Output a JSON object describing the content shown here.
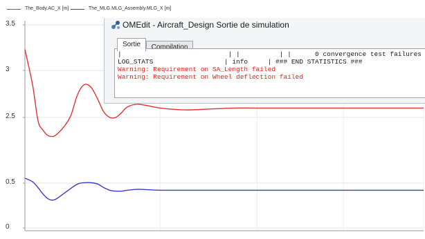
{
  "legend": {
    "items": [
      {
        "label": "The_Body.AC_X [m]",
        "color": "#e83030"
      },
      {
        "label": "The_MLG.MLG_Assembly.MLG_X [m]",
        "color": "#3a3ad0"
      }
    ]
  },
  "chart_data": {
    "type": "line",
    "title": "",
    "xlabel": "",
    "ylabel": "",
    "ylim": [
      0,
      3.5
    ],
    "y_tick_labels": [
      "3.5",
      "3",
      "2.5",
      "0.5",
      "0"
    ],
    "grid": true,
    "legend_placement": "top-left",
    "series": [
      {
        "name": "The_Body.AC_X [m]",
        "color": "#e83030",
        "x": [
          0.0,
          0.05,
          0.1,
          0.15,
          0.2,
          0.25,
          0.3,
          0.4,
          0.5,
          0.6,
          0.7,
          0.8,
          0.9,
          1.0,
          1.1,
          1.2,
          1.3,
          1.4,
          1.6,
          2.0,
          2.5,
          3.0,
          3.5,
          4.0,
          5.0,
          6.0,
          7.0,
          8.0
        ],
        "y": [
          3.23,
          2.85,
          2.4,
          2.12,
          1.96,
          1.92,
          1.96,
          2.2,
          2.52,
          2.75,
          2.85,
          2.82,
          2.7,
          2.56,
          2.5,
          2.5,
          2.55,
          2.61,
          2.64,
          2.6,
          2.58,
          2.59,
          2.6,
          2.6,
          2.6,
          2.6,
          2.6,
          2.6
        ]
      },
      {
        "name": "The_MLG.MLG_Assembly.MLG_X [m]",
        "color": "#3a3ad0",
        "x": [
          0.0,
          0.05,
          0.1,
          0.15,
          0.2,
          0.25,
          0.3,
          0.4,
          0.5,
          0.6,
          0.7,
          0.8,
          0.9,
          1.0,
          1.1,
          1.2,
          1.3,
          1.4,
          1.6,
          2.0,
          2.5,
          3.0,
          3.5,
          4.0,
          5.0,
          6.0,
          7.0,
          8.0
        ],
        "y": [
          0.65,
          0.54,
          0.45,
          0.38,
          0.33,
          0.31,
          0.32,
          0.38,
          0.44,
          0.49,
          0.51,
          0.51,
          0.49,
          0.45,
          0.42,
          0.41,
          0.41,
          0.42,
          0.43,
          0.42,
          0.42,
          0.42,
          0.42,
          0.42,
          0.42,
          0.42,
          0.42,
          0.42
        ]
      }
    ]
  },
  "dialog": {
    "title": "OMEdit - Aircraft_Design Sortie de simulation",
    "app_icon": "omedit-logo-icon",
    "tabs": [
      {
        "label": "Sortie",
        "active": true
      },
      {
        "label": "Compilation",
        "active": false
      }
    ],
    "output_lines": [
      {
        "text": "|                           | |          | |      0 convergence test failures",
        "type": "log"
      },
      {
        "text": "LOG_STATS                  | info     | ### END STATISTICS ###",
        "type": "log"
      },
      {
        "text": "Warning: Requirement on SA_Length failed",
        "type": "warning"
      },
      {
        "text": "Warning: Requirement on Wheel deflection failed",
        "type": "warning"
      }
    ],
    "warning_color": "#e62020"
  }
}
